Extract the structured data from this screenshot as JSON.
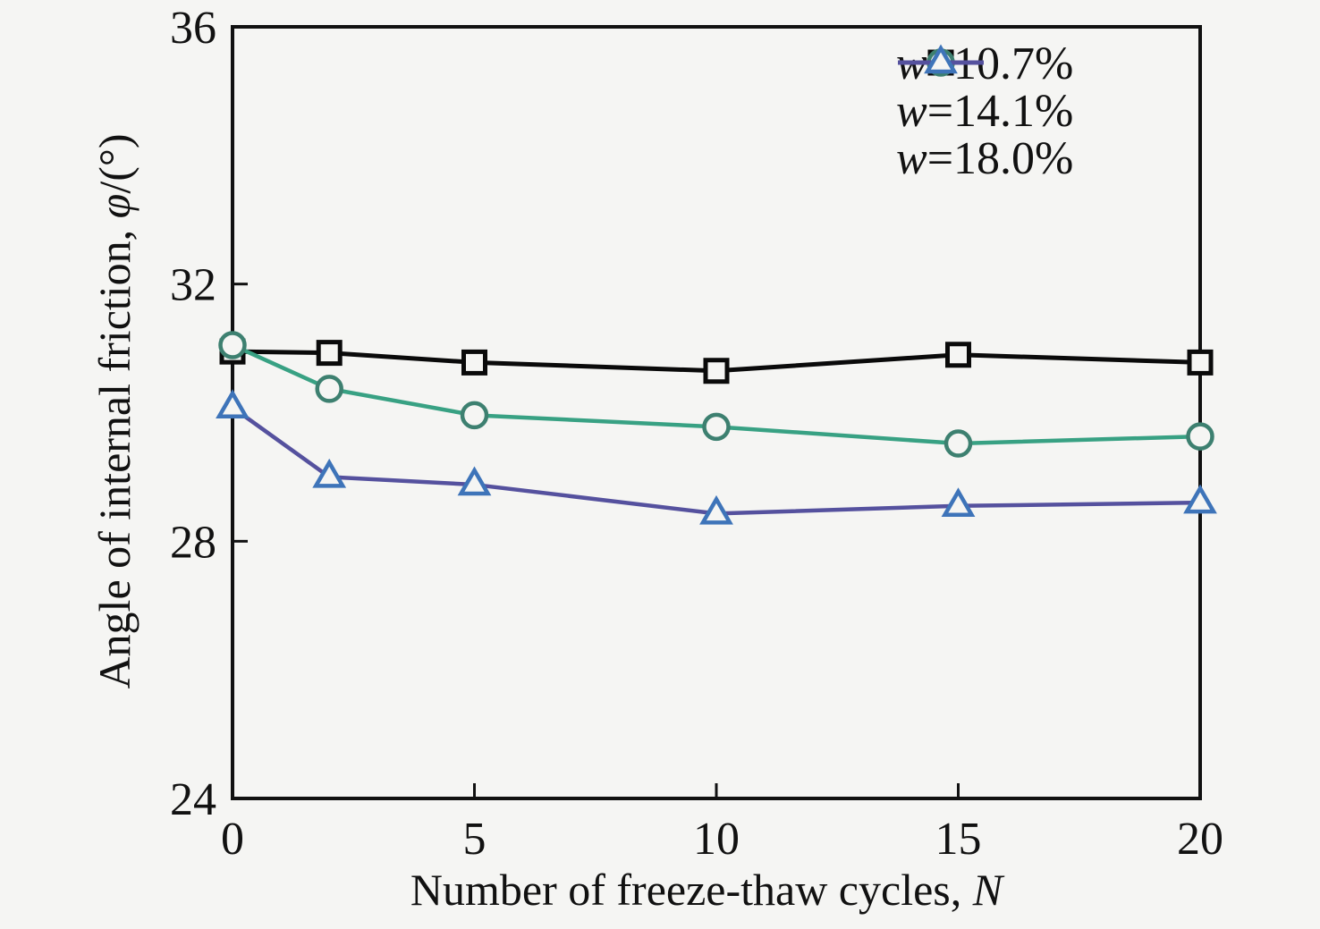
{
  "figure": {
    "background": "#f5f5f3",
    "text_color": "#111111"
  },
  "chart_data": {
    "type": "line",
    "x": [
      0,
      2,
      5,
      10,
      15,
      20
    ],
    "series": [
      {
        "name_symbol": "w",
        "name_rest": "=10.7%",
        "marker": "square",
        "line_color": "#0a0a0a",
        "marker_color": "#0a0a0a",
        "values": [
          30.95,
          30.93,
          30.78,
          30.65,
          30.9,
          30.78
        ]
      },
      {
        "name_symbol": "w",
        "name_rest": "=14.1%",
        "marker": "circle",
        "line_color": "#38a183",
        "marker_color": "#3d8070",
        "values": [
          31.05,
          30.37,
          29.96,
          29.78,
          29.52,
          29.63
        ]
      },
      {
        "name_symbol": "w",
        "name_rest": "=18.0%",
        "marker": "triangle",
        "line_color": "#55519e",
        "marker_color": "#3e74b9",
        "values": [
          30.08,
          29.0,
          28.88,
          28.43,
          28.55,
          28.6
        ]
      }
    ],
    "xlabel_prefix": "Number of freeze-thaw cycles, ",
    "xlabel_symbol": "N",
    "ylabel_prefix": "Angle of internal friction, ",
    "ylabel_symbol": "φ",
    "ylabel_suffix": "/(°)",
    "x_ticks": [
      0,
      5,
      10,
      15,
      20
    ],
    "y_ticks": [
      24,
      28,
      32,
      36
    ],
    "xlim": [
      0,
      20
    ],
    "ylim": [
      24,
      36
    ],
    "grid": false,
    "legend_position": "top-right-inside"
  }
}
